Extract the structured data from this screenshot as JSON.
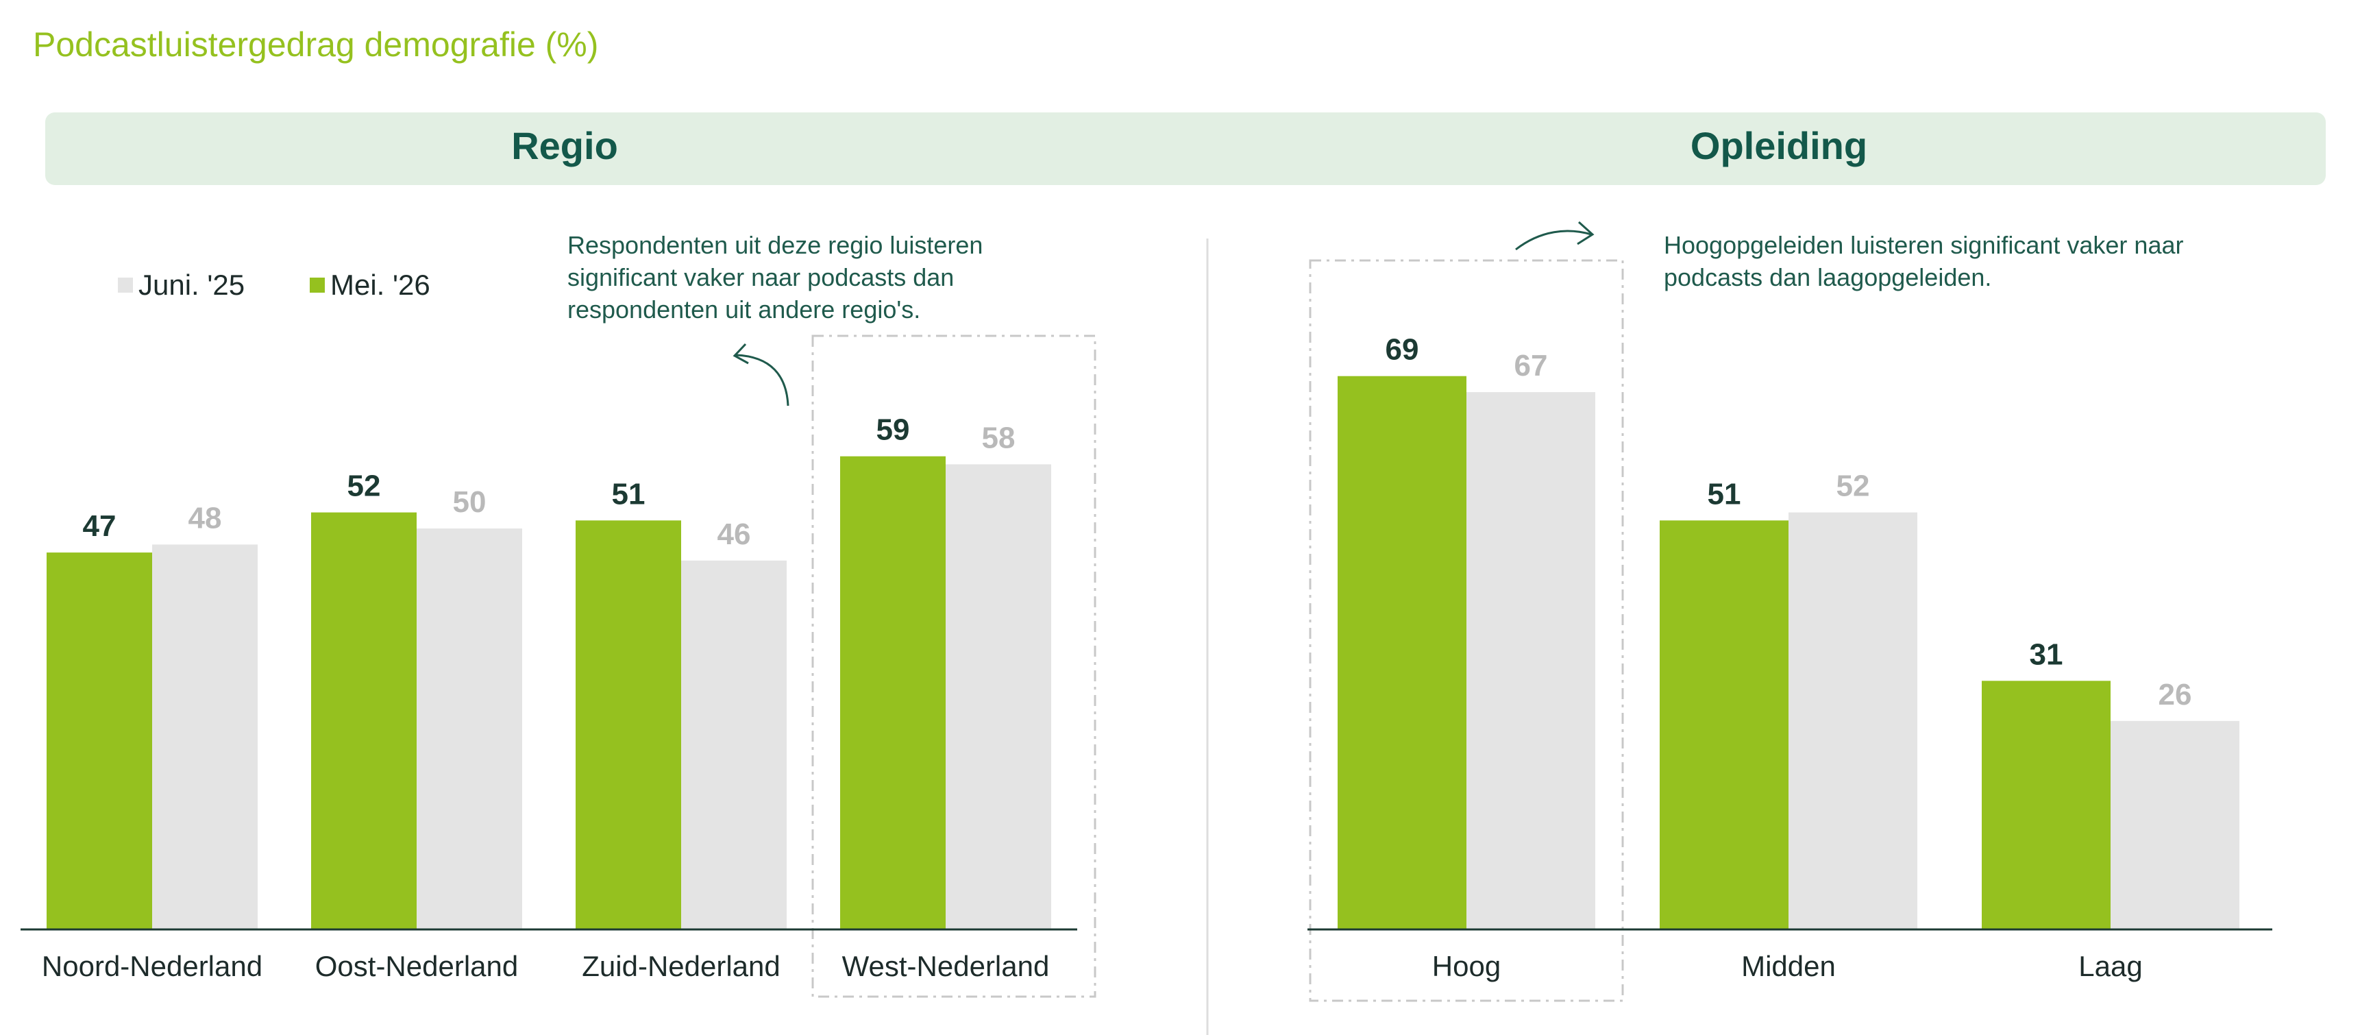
{
  "title": "Podcastluistergedrag demografie (%)",
  "colors": {
    "mei26": "#95c11f",
    "juni25": "#e4e4e4",
    "value_mei26": "#1c3a33",
    "value_juni25": "#b9b9b9",
    "heading": "#13584a",
    "band": "#e2efe3"
  },
  "legend": {
    "juni25": "Juni. '25",
    "mei26": "Mei. '26"
  },
  "sections": {
    "regio": "Regio",
    "opleiding": "Opleiding"
  },
  "notes": {
    "regio": "Respondenten uit deze regio luisteren significant vaker naar podcasts dan respondenten uit andere regio's.",
    "opleiding": "Hoogopgeleiden luisteren significant vaker naar podcasts dan laagopgeleiden."
  },
  "chart_data": [
    {
      "type": "bar",
      "title": "Regio",
      "categories": [
        "Noord-Nederland",
        "Oost-Nederland",
        "Zuid-Nederland",
        "West-Nederland"
      ],
      "series": [
        {
          "name": "Mei. '26",
          "values": [
            47,
            52,
            51,
            59
          ]
        },
        {
          "name": "Juni. '25",
          "values": [
            48,
            50,
            46,
            58
          ]
        }
      ],
      "highlighted_category": "West-Nederland",
      "legend_position": "top-left",
      "grid": false
    },
    {
      "type": "bar",
      "title": "Opleiding",
      "categories": [
        "Hoog",
        "Midden",
        "Laag"
      ],
      "series": [
        {
          "name": "Mei. '26",
          "values": [
            69,
            51,
            31
          ]
        },
        {
          "name": "Juni. '25",
          "values": [
            67,
            52,
            26
          ]
        }
      ],
      "highlighted_category": "Hoog",
      "grid": false
    }
  ]
}
